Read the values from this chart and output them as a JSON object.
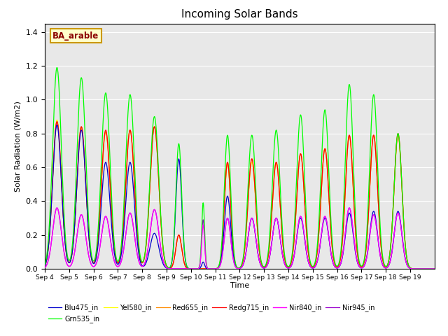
{
  "title": "Incoming Solar Bands",
  "xlabel": "Time",
  "ylabel": "Solar Radiation (W/m2)",
  "ylim": [
    0,
    1.45
  ],
  "bg_color": "#E8E8E8",
  "annotation_text": "BA_arable",
  "annotation_color": "#8B0000",
  "annotation_bg": "#FFFFCC",
  "annotation_border": "#CC9900",
  "series": {
    "Blu475_in": {
      "color": "#0000CD"
    },
    "Grn535_in": {
      "color": "#00FF00"
    },
    "Yel580_in": {
      "color": "#FFFF00"
    },
    "Red655_in": {
      "color": "#FF8C00"
    },
    "Redg715_in": {
      "color": "#FF0000"
    },
    "Nir840_in": {
      "color": "#FF00FF"
    },
    "Nir945_in": {
      "color": "#9900CC"
    }
  },
  "xtick_labels": [
    "Sep 4",
    "Sep 5",
    "Sep 6",
    "Sep 7",
    "Sep 8",
    "Sep 9",
    "Sep 10",
    "Sep 11",
    "Sep 12",
    "Sep 13",
    "Sep 14",
    "Sep 15",
    "Sep 16",
    "Sep 17",
    "Sep 18",
    "Sep 19"
  ],
  "day_peaks": {
    "grn": [
      1.19,
      1.13,
      1.04,
      1.03,
      0.9,
      0.74,
      0.39,
      0.79,
      0.79,
      0.82,
      0.91,
      0.94,
      1.09,
      1.03,
      0.8,
      0.0
    ],
    "blu": [
      0.85,
      0.82,
      0.63,
      0.63,
      0.21,
      0.65,
      0.04,
      0.43,
      0.3,
      0.3,
      0.3,
      0.3,
      0.33,
      0.34,
      0.34,
      0.0
    ],
    "yel": [
      0.88,
      0.83,
      0.81,
      0.82,
      0.84,
      0.2,
      0.0,
      0.62,
      0.63,
      0.62,
      0.68,
      0.71,
      0.78,
      0.79,
      0.79,
      0.0
    ],
    "red": [
      0.87,
      0.84,
      0.81,
      0.82,
      0.84,
      0.2,
      0.0,
      0.63,
      0.65,
      0.63,
      0.68,
      0.71,
      0.79,
      0.79,
      0.79,
      0.0
    ],
    "redg": [
      0.87,
      0.84,
      0.82,
      0.82,
      0.84,
      0.2,
      0.0,
      0.63,
      0.65,
      0.63,
      0.68,
      0.71,
      0.79,
      0.79,
      0.8,
      0.0
    ],
    "nir840": [
      0.36,
      0.32,
      0.31,
      0.33,
      0.35,
      0.0,
      0.26,
      0.3,
      0.3,
      0.3,
      0.31,
      0.31,
      0.36,
      0.32,
      0.33,
      0.0
    ],
    "nir945": [
      0.36,
      0.32,
      0.31,
      0.33,
      0.35,
      0.0,
      0.29,
      0.3,
      0.3,
      0.3,
      0.31,
      0.31,
      0.36,
      0.32,
      0.33,
      0.0
    ]
  },
  "day_widths": [
    0.18,
    0.18,
    0.18,
    0.18,
    0.18,
    0.12,
    0.06,
    0.13,
    0.16,
    0.16,
    0.16,
    0.16,
    0.16,
    0.16,
    0.16,
    0.0
  ],
  "n_days": 16,
  "pts_per_day": 200
}
